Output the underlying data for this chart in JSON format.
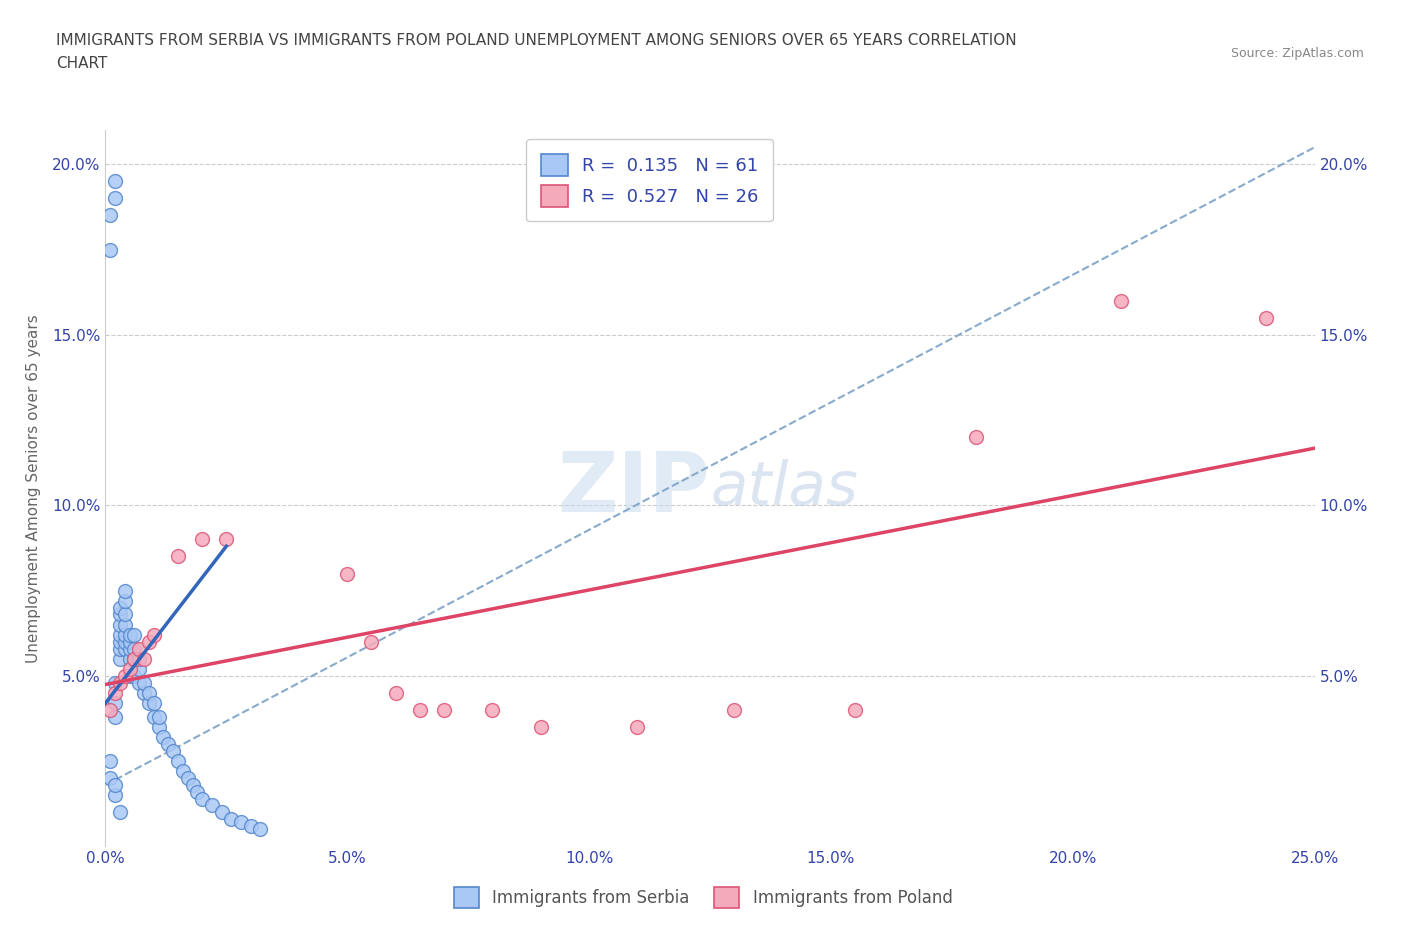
{
  "title_line1": "IMMIGRANTS FROM SERBIA VS IMMIGRANTS FROM POLAND UNEMPLOYMENT AMONG SENIORS OVER 65 YEARS CORRELATION",
  "title_line2": "CHART",
  "source": "Source: ZipAtlas.com",
  "ylabel": "Unemployment Among Seniors over 65 years",
  "xlim": [
    0.0,
    0.25
  ],
  "ylim": [
    0.0,
    0.21
  ],
  "xticks": [
    0.0,
    0.05,
    0.1,
    0.15,
    0.2,
    0.25
  ],
  "yticks": [
    0.0,
    0.05,
    0.1,
    0.15,
    0.2
  ],
  "xtick_labels": [
    "0.0%",
    "5.0%",
    "10.0%",
    "15.0%",
    "20.0%",
    "25.0%"
  ],
  "ytick_labels_left": [
    "",
    "5.0%",
    "10.0%",
    "15.0%",
    "20.0%"
  ],
  "ytick_labels_right": [
    "",
    "5.0%",
    "10.0%",
    "15.0%",
    "20.0%"
  ],
  "serbia_color": "#aac8f5",
  "poland_color": "#f5aabb",
  "serbia_edge": "#5588cc",
  "poland_edge": "#dd5577",
  "serbia_R": 0.135,
  "serbia_N": 61,
  "poland_R": 0.527,
  "poland_N": 26,
  "legend_label_serbia": "Immigrants from Serbia",
  "legend_label_poland": "Immigrants from Poland",
  "serbia_line_color": "#3366bb",
  "poland_line_color": "#dd4466",
  "dashed_line_color": "#88aacc",
  "watermark_zip": "ZIP",
  "watermark_atlas": "atlas",
  "title_color": "#444444",
  "axis_color": "#3344aa",
  "serbia_x": [
    0.001,
    0.001,
    0.002,
    0.002,
    0.002,
    0.002,
    0.002,
    0.003,
    0.003,
    0.003,
    0.003,
    0.003,
    0.003,
    0.003,
    0.004,
    0.004,
    0.004,
    0.004,
    0.004,
    0.004,
    0.004,
    0.005,
    0.005,
    0.005,
    0.005,
    0.005,
    0.006,
    0.006,
    0.006,
    0.006,
    0.007,
    0.007,
    0.007,
    0.008,
    0.008,
    0.009,
    0.009,
    0.01,
    0.01,
    0.011,
    0.011,
    0.012,
    0.013,
    0.014,
    0.015,
    0.016,
    0.017,
    0.018,
    0.019,
    0.02,
    0.022,
    0.024,
    0.026,
    0.028,
    0.03,
    0.032,
    0.001,
    0.001,
    0.002,
    0.002,
    0.003
  ],
  "serbia_y": [
    0.175,
    0.185,
    0.19,
    0.195,
    0.038,
    0.042,
    0.048,
    0.055,
    0.058,
    0.06,
    0.062,
    0.065,
    0.068,
    0.07,
    0.058,
    0.06,
    0.062,
    0.065,
    0.068,
    0.072,
    0.075,
    0.05,
    0.055,
    0.058,
    0.06,
    0.062,
    0.05,
    0.055,
    0.058,
    0.062,
    0.048,
    0.052,
    0.055,
    0.045,
    0.048,
    0.042,
    0.045,
    0.038,
    0.042,
    0.035,
    0.038,
    0.032,
    0.03,
    0.028,
    0.025,
    0.022,
    0.02,
    0.018,
    0.016,
    0.014,
    0.012,
    0.01,
    0.008,
    0.007,
    0.006,
    0.005,
    0.02,
    0.025,
    0.015,
    0.018,
    0.01
  ],
  "poland_x": [
    0.001,
    0.002,
    0.003,
    0.004,
    0.005,
    0.006,
    0.007,
    0.008,
    0.009,
    0.01,
    0.015,
    0.02,
    0.025,
    0.05,
    0.055,
    0.06,
    0.065,
    0.07,
    0.08,
    0.09,
    0.11,
    0.13,
    0.155,
    0.18,
    0.21,
    0.24
  ],
  "poland_y": [
    0.04,
    0.045,
    0.048,
    0.05,
    0.052,
    0.055,
    0.058,
    0.055,
    0.06,
    0.062,
    0.085,
    0.09,
    0.09,
    0.08,
    0.06,
    0.045,
    0.04,
    0.04,
    0.04,
    0.035,
    0.035,
    0.04,
    0.04,
    0.12,
    0.16,
    0.155
  ]
}
